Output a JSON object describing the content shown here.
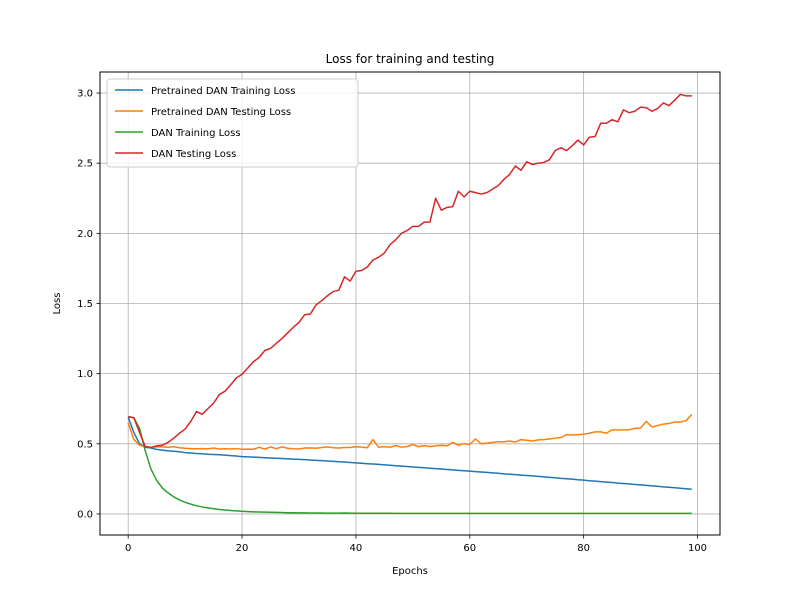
{
  "chart_data": {
    "type": "line",
    "title": "Loss for training and testing",
    "xlabel": "Epochs",
    "ylabel": "Loss",
    "xlim": [
      -4.95,
      103.95
    ],
    "ylim": [
      -0.15,
      3.15
    ],
    "xticks": [
      0,
      20,
      40,
      60,
      80,
      100
    ],
    "yticks": [
      0.0,
      0.5,
      1.0,
      1.5,
      2.0,
      2.5,
      3.0
    ],
    "grid": true,
    "legend_position": "top-left",
    "x": [
      0,
      1,
      2,
      3,
      4,
      5,
      6,
      7,
      8,
      9,
      10,
      11,
      12,
      13,
      14,
      15,
      16,
      17,
      18,
      19,
      20,
      21,
      22,
      23,
      24,
      25,
      26,
      27,
      28,
      29,
      30,
      31,
      32,
      33,
      34,
      35,
      36,
      37,
      38,
      39,
      40,
      41,
      42,
      43,
      44,
      45,
      46,
      47,
      48,
      49,
      50,
      51,
      52,
      53,
      54,
      55,
      56,
      57,
      58,
      59,
      60,
      61,
      62,
      63,
      64,
      65,
      66,
      67,
      68,
      69,
      70,
      71,
      72,
      73,
      74,
      75,
      76,
      77,
      78,
      79,
      80,
      81,
      82,
      83,
      84,
      85,
      86,
      87,
      88,
      89,
      90,
      91,
      92,
      93,
      94,
      95,
      96,
      97,
      98,
      99
    ],
    "series": [
      {
        "name": "Pretrained DAN Training Loss",
        "color": "#1f77b4",
        "values": [
          0.69,
          0.58,
          0.5,
          0.475,
          0.47,
          0.46,
          0.455,
          0.45,
          0.447,
          0.443,
          0.437,
          0.434,
          0.431,
          0.429,
          0.426,
          0.424,
          0.422,
          0.419,
          0.416,
          0.413,
          0.409,
          0.407,
          0.405,
          0.403,
          0.401,
          0.399,
          0.397,
          0.395,
          0.393,
          0.391,
          0.389,
          0.387,
          0.385,
          0.382,
          0.38,
          0.377,
          0.375,
          0.372,
          0.37,
          0.367,
          0.364,
          0.361,
          0.358,
          0.356,
          0.353,
          0.35,
          0.347,
          0.344,
          0.341,
          0.338,
          0.335,
          0.332,
          0.329,
          0.326,
          0.323,
          0.32,
          0.317,
          0.314,
          0.311,
          0.308,
          0.305,
          0.302,
          0.299,
          0.296,
          0.293,
          0.29,
          0.286,
          0.283,
          0.28,
          0.277,
          0.274,
          0.271,
          0.268,
          0.264,
          0.261,
          0.258,
          0.254,
          0.251,
          0.248,
          0.244,
          0.241,
          0.237,
          0.234,
          0.23,
          0.227,
          0.224,
          0.22,
          0.217,
          0.214,
          0.21,
          0.207,
          0.204,
          0.2,
          0.197,
          0.193,
          0.19,
          0.187,
          0.183,
          0.18,
          0.176
        ]
      },
      {
        "name": "Pretrained DAN Testing Loss",
        "color": "#ff7f0e",
        "values": [
          0.65,
          0.53,
          0.49,
          0.48,
          0.475,
          0.478,
          0.478,
          0.475,
          0.48,
          0.472,
          0.468,
          0.466,
          0.465,
          0.466,
          0.464,
          0.47,
          0.462,
          0.465,
          0.463,
          0.466,
          0.46,
          0.462,
          0.461,
          0.475,
          0.462,
          0.478,
          0.465,
          0.478,
          0.468,
          0.465,
          0.463,
          0.47,
          0.471,
          0.468,
          0.474,
          0.478,
          0.472,
          0.47,
          0.474,
          0.474,
          0.48,
          0.476,
          0.472,
          0.53,
          0.475,
          0.48,
          0.475,
          0.488,
          0.476,
          0.48,
          0.495,
          0.479,
          0.487,
          0.48,
          0.485,
          0.49,
          0.485,
          0.51,
          0.49,
          0.5,
          0.495,
          0.535,
          0.5,
          0.505,
          0.51,
          0.515,
          0.515,
          0.52,
          0.512,
          0.53,
          0.525,
          0.52,
          0.528,
          0.53,
          0.535,
          0.54,
          0.545,
          0.565,
          0.563,
          0.565,
          0.568,
          0.575,
          0.585,
          0.585,
          0.575,
          0.6,
          0.598,
          0.598,
          0.6,
          0.61,
          0.613,
          0.66,
          0.62,
          0.63,
          0.64,
          0.645,
          0.655,
          0.655,
          0.665,
          0.71
        ]
      },
      {
        "name": "DAN Training Loss",
        "color": "#2ca02c",
        "values": [
          0.693,
          0.685,
          0.61,
          0.45,
          0.32,
          0.24,
          0.185,
          0.15,
          0.122,
          0.1,
          0.083,
          0.07,
          0.058,
          0.05,
          0.043,
          0.037,
          0.032,
          0.028,
          0.025,
          0.022,
          0.019,
          0.017,
          0.015,
          0.014,
          0.013,
          0.012,
          0.011,
          0.01,
          0.009,
          0.009,
          0.008,
          0.008,
          0.007,
          0.007,
          0.007,
          0.006,
          0.006,
          0.006,
          0.007,
          0.006,
          0.005,
          0.005,
          0.005,
          0.005,
          0.005,
          0.005,
          0.005,
          0.004,
          0.004,
          0.004,
          0.004,
          0.004,
          0.004,
          0.004,
          0.004,
          0.004,
          0.004,
          0.004,
          0.004,
          0.004,
          0.004,
          0.004,
          0.004,
          0.004,
          0.004,
          0.004,
          0.004,
          0.004,
          0.004,
          0.004,
          0.004,
          0.004,
          0.004,
          0.004,
          0.004,
          0.004,
          0.004,
          0.004,
          0.004,
          0.004,
          0.004,
          0.004,
          0.004,
          0.004,
          0.004,
          0.004,
          0.004,
          0.004,
          0.004,
          0.004,
          0.004,
          0.004,
          0.004,
          0.004,
          0.004,
          0.004,
          0.004,
          0.004,
          0.004,
          0.004
        ]
      },
      {
        "name": "DAN Testing Loss",
        "color": "#d62728",
        "values": [
          0.695,
          0.685,
          0.58,
          0.48,
          0.475,
          0.485,
          0.49,
          0.51,
          0.54,
          0.575,
          0.605,
          0.66,
          0.73,
          0.71,
          0.75,
          0.79,
          0.85,
          0.875,
          0.92,
          0.97,
          0.995,
          1.04,
          1.085,
          1.115,
          1.165,
          1.18,
          1.215,
          1.25,
          1.29,
          1.33,
          1.365,
          1.42,
          1.425,
          1.49,
          1.52,
          1.555,
          1.585,
          1.595,
          1.69,
          1.66,
          1.73,
          1.735,
          1.76,
          1.81,
          1.83,
          1.86,
          1.92,
          1.955,
          2.0,
          2.02,
          2.05,
          2.05,
          2.08,
          2.08,
          2.25,
          2.165,
          2.185,
          2.19,
          2.3,
          2.26,
          2.3,
          2.29,
          2.28,
          2.29,
          2.315,
          2.34,
          2.385,
          2.42,
          2.48,
          2.45,
          2.51,
          2.49,
          2.5,
          2.505,
          2.525,
          2.59,
          2.61,
          2.59,
          2.625,
          2.665,
          2.63,
          2.685,
          2.69,
          2.785,
          2.785,
          2.81,
          2.795,
          2.88,
          2.86,
          2.87,
          2.9,
          2.895,
          2.87,
          2.89,
          2.93,
          2.91,
          2.95,
          2.99,
          2.98,
          2.98
        ]
      }
    ]
  }
}
